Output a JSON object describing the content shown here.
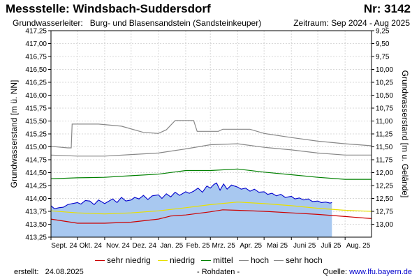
{
  "header": {
    "title": "Messstelle: Windsbach-Suddersdorf",
    "number": "Nr: 3142",
    "aquifer_label": "Grundwasserleiter:",
    "aquifer": "Burg- und Blasensandstein (Sandsteinkeuper)",
    "period": "Zeitraum: Sep 2024 - Aug 2025"
  },
  "footer": {
    "created_label": "erstellt:",
    "created_date": "24.08.2025",
    "raw_note": "- Rohdaten -",
    "source_label": "Quelle:",
    "source_url": "www.lfu.bayern.de"
  },
  "colors": {
    "measurement_line": "#0000cc",
    "measurement_fill": "#a8c8f0",
    "sehr_niedrig": "#cc0000",
    "niedrig": "#e8e000",
    "mittel": "#008000",
    "hoch": "#888888",
    "sehr_hoch": "#888888",
    "grid": "#d8d8d8"
  },
  "chart_data": {
    "type": "area",
    "ylabel_left": "Grundwasserstand [m ü. NN]",
    "ylabel_right": "Grundwasserstand [m u. Gelände]",
    "ylim": [
      413.25,
      417.25
    ],
    "yticks_left": [
      "417,25",
      "417,00",
      "416,75",
      "416,50",
      "416,25",
      "416,00",
      "415,75",
      "415,50",
      "415,25",
      "415,00",
      "414,75",
      "414,50",
      "414,25",
      "414,00",
      "413,75",
      "413,50",
      "413,25"
    ],
    "yticks_right": [
      "9,25",
      "9,50",
      "9,75",
      "10,00",
      "10,25",
      "10,50",
      "10,75",
      "11,00",
      "11,25",
      "11,50",
      "11,75",
      "12,00",
      "12,25",
      "12,50",
      "12,75",
      "13,00"
    ],
    "xticks": [
      "Sept. 24",
      "Okt. 24",
      "Nov. 24",
      "Dez. 24",
      "Jan. 25",
      "Feb. 25",
      "Mrz. 25",
      "Apr. 25",
      "Mai 25",
      "Juni 25",
      "Juli 25",
      "Aug. 25"
    ],
    "x_range": [
      "2024-09-01",
      "2025-08-31"
    ],
    "legend": [
      "sehr niedrig",
      "niedrig",
      "mittel",
      "hoch",
      "sehr hoch"
    ],
    "grid": true,
    "series": [
      {
        "name": "sehr niedrig",
        "key": "sehr_niedrig",
        "points": [
          [
            "2024-09-01",
            413.6
          ],
          [
            "2024-10-01",
            413.52
          ],
          [
            "2024-11-01",
            413.52
          ],
          [
            "2024-12-01",
            413.54
          ],
          [
            "2025-01-01",
            413.6
          ],
          [
            "2025-01-15",
            413.66
          ],
          [
            "2025-02-01",
            413.68
          ],
          [
            "2025-03-01",
            413.74
          ],
          [
            "2025-03-15",
            413.78
          ],
          [
            "2025-04-01",
            413.77
          ],
          [
            "2025-05-01",
            413.75
          ],
          [
            "2025-06-01",
            413.72
          ],
          [
            "2025-07-01",
            413.69
          ],
          [
            "2025-08-01",
            413.65
          ],
          [
            "2025-08-31",
            413.61
          ]
        ]
      },
      {
        "name": "niedrig",
        "key": "niedrig",
        "points": [
          [
            "2024-09-01",
            413.76
          ],
          [
            "2024-10-01",
            413.72
          ],
          [
            "2024-11-01",
            413.7
          ],
          [
            "2024-12-01",
            413.72
          ],
          [
            "2025-01-01",
            413.76
          ],
          [
            "2025-02-01",
            413.82
          ],
          [
            "2025-03-01",
            413.88
          ],
          [
            "2025-04-01",
            413.93
          ],
          [
            "2025-05-01",
            413.9
          ],
          [
            "2025-06-01",
            413.86
          ],
          [
            "2025-07-01",
            413.81
          ],
          [
            "2025-08-01",
            413.77
          ],
          [
            "2025-08-31",
            413.75
          ]
        ]
      },
      {
        "name": "mittel",
        "key": "mittel",
        "points": [
          [
            "2024-09-01",
            414.38
          ],
          [
            "2024-10-01",
            414.4
          ],
          [
            "2024-11-01",
            414.41
          ],
          [
            "2024-12-01",
            414.44
          ],
          [
            "2025-01-01",
            414.47
          ],
          [
            "2025-02-01",
            414.54
          ],
          [
            "2025-03-01",
            414.54
          ],
          [
            "2025-04-01",
            414.57
          ],
          [
            "2025-05-01",
            414.51
          ],
          [
            "2025-06-01",
            414.46
          ],
          [
            "2025-07-01",
            414.41
          ],
          [
            "2025-08-01",
            414.37
          ],
          [
            "2025-08-31",
            414.37
          ]
        ]
      },
      {
        "name": "hoch",
        "key": "hoch",
        "points": [
          [
            "2024-09-01",
            414.84
          ],
          [
            "2024-10-01",
            414.82
          ],
          [
            "2024-11-01",
            414.82
          ],
          [
            "2024-12-01",
            414.85
          ],
          [
            "2025-01-01",
            414.88
          ],
          [
            "2025-02-01",
            414.96
          ],
          [
            "2025-03-01",
            415.04
          ],
          [
            "2025-04-01",
            415.06
          ],
          [
            "2025-05-01",
            414.99
          ],
          [
            "2025-06-01",
            414.94
          ],
          [
            "2025-07-01",
            414.88
          ],
          [
            "2025-08-01",
            414.84
          ],
          [
            "2025-08-31",
            414.84
          ]
        ]
      },
      {
        "name": "sehr hoch",
        "key": "sehr_hoch",
        "points": [
          [
            "2024-09-01",
            415.01
          ],
          [
            "2024-09-20",
            414.98
          ],
          [
            "2024-09-24",
            414.98
          ],
          [
            "2024-09-25",
            415.44
          ],
          [
            "2024-10-25",
            415.44
          ],
          [
            "2024-11-20",
            415.4
          ],
          [
            "2024-12-15",
            415.28
          ],
          [
            "2025-01-01",
            415.26
          ],
          [
            "2025-01-10",
            415.33
          ],
          [
            "2025-01-20",
            415.51
          ],
          [
            "2025-02-10",
            415.51
          ],
          [
            "2025-02-14",
            415.3
          ],
          [
            "2025-03-10",
            415.3
          ],
          [
            "2025-03-15",
            415.34
          ],
          [
            "2025-04-15",
            415.34
          ],
          [
            "2025-05-01",
            415.26
          ],
          [
            "2025-06-01",
            415.18
          ],
          [
            "2025-07-01",
            415.11
          ],
          [
            "2025-08-01",
            415.06
          ],
          [
            "2025-08-31",
            415.02
          ]
        ]
      }
    ],
    "measurements": {
      "name": "Grundwasserstand",
      "points": [
        [
          "2024-09-01",
          413.86
        ],
        [
          "2024-09-05",
          413.8
        ],
        [
          "2024-09-10",
          413.82
        ],
        [
          "2024-09-15",
          413.83
        ],
        [
          "2024-09-20",
          413.88
        ],
        [
          "2024-09-25",
          413.9
        ],
        [
          "2024-10-01",
          413.92
        ],
        [
          "2024-10-05",
          413.89
        ],
        [
          "2024-10-10",
          413.96
        ],
        [
          "2024-10-15",
          413.95
        ],
        [
          "2024-10-20",
          413.88
        ],
        [
          "2024-10-25",
          413.97
        ],
        [
          "2024-11-01",
          413.9
        ],
        [
          "2024-11-05",
          413.94
        ],
        [
          "2024-11-10",
          413.99
        ],
        [
          "2024-11-15",
          413.92
        ],
        [
          "2024-11-20",
          414.02
        ],
        [
          "2024-11-25",
          413.95
        ],
        [
          "2024-12-01",
          413.97
        ],
        [
          "2024-12-05",
          414.02
        ],
        [
          "2024-12-10",
          413.99
        ],
        [
          "2024-12-15",
          414.06
        ],
        [
          "2024-12-20",
          413.98
        ],
        [
          "2024-12-25",
          414.05
        ],
        [
          "2025-01-01",
          414.07
        ],
        [
          "2025-01-05",
          414.0
        ],
        [
          "2025-01-10",
          414.09
        ],
        [
          "2025-01-15",
          414.03
        ],
        [
          "2025-01-20",
          414.12
        ],
        [
          "2025-01-25",
          414.06
        ],
        [
          "2025-02-01",
          414.13
        ],
        [
          "2025-02-05",
          414.1
        ],
        [
          "2025-02-10",
          414.14
        ],
        [
          "2025-02-15",
          414.2
        ],
        [
          "2025-02-20",
          414.12
        ],
        [
          "2025-02-25",
          414.24
        ],
        [
          "2025-03-01",
          414.2
        ],
        [
          "2025-03-05",
          414.27
        ],
        [
          "2025-03-08",
          414.3
        ],
        [
          "2025-03-12",
          414.16
        ],
        [
          "2025-03-16",
          414.28
        ],
        [
          "2025-03-20",
          414.18
        ],
        [
          "2025-03-25",
          414.26
        ],
        [
          "2025-04-01",
          414.22
        ],
        [
          "2025-04-05",
          414.18
        ],
        [
          "2025-04-10",
          414.2
        ],
        [
          "2025-04-15",
          414.14
        ],
        [
          "2025-04-20",
          414.18
        ],
        [
          "2025-04-25",
          414.12
        ],
        [
          "2025-05-01",
          414.13
        ],
        [
          "2025-05-05",
          414.08
        ],
        [
          "2025-05-10",
          414.1
        ],
        [
          "2025-05-15",
          414.05
        ],
        [
          "2025-05-20",
          414.08
        ],
        [
          "2025-05-25",
          414.02
        ],
        [
          "2025-06-01",
          414.04
        ],
        [
          "2025-06-05",
          413.99
        ],
        [
          "2025-06-10",
          414.01
        ],
        [
          "2025-06-15",
          413.97
        ],
        [
          "2025-06-20",
          413.99
        ],
        [
          "2025-06-25",
          413.94
        ],
        [
          "2025-07-01",
          413.95
        ],
        [
          "2025-07-05",
          413.92
        ],
        [
          "2025-07-10",
          413.93
        ],
        [
          "2025-07-15",
          413.91
        ],
        [
          "2025-07-17",
          413.92
        ]
      ]
    }
  }
}
